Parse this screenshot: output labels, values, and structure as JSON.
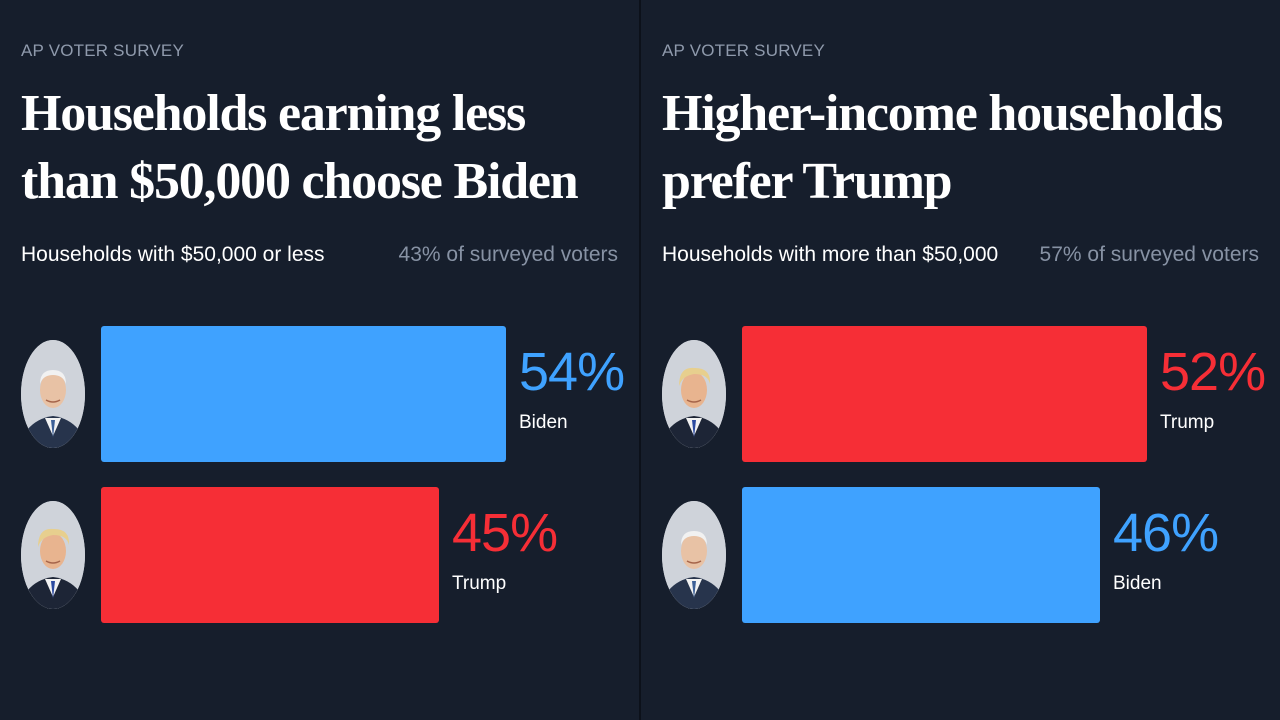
{
  "colors": {
    "background": "#161e2c",
    "biden": "#3fa2ff",
    "trump": "#f62e36",
    "muted": "#8792a4"
  },
  "panels": [
    {
      "kicker": "AP VOTER SURVEY",
      "title": "Households earning less than $50,000 choose Biden",
      "subtitle": "Households with $50,000 or less",
      "share": "43% of surveyed voters"
    },
    {
      "kicker": "AP VOTER SURVEY",
      "title": "Higher-income households prefer Trump",
      "subtitle": "Households with more than $50,000",
      "share": "57% of surveyed voters"
    }
  ],
  "chart_data": [
    {
      "type": "bar",
      "orientation": "horizontal",
      "title": "Households earning less than $50,000 choose Biden",
      "categories": [
        "Biden",
        "Trump"
      ],
      "values": [
        54,
        45
      ],
      "value_labels": [
        "54%",
        "45%"
      ],
      "colors": [
        "#3fa2ff",
        "#f62e36"
      ],
      "icons": [
        "biden-photo",
        "trump-photo"
      ],
      "xlim": [
        0,
        54
      ]
    },
    {
      "type": "bar",
      "orientation": "horizontal",
      "title": "Higher-income households prefer Trump",
      "categories": [
        "Trump",
        "Biden"
      ],
      "values": [
        52,
        46
      ],
      "value_labels": [
        "52%",
        "46%"
      ],
      "colors": [
        "#f62e36",
        "#3fa2ff"
      ],
      "icons": [
        "trump-photo",
        "biden-photo"
      ],
      "xlim": [
        0,
        52
      ]
    }
  ]
}
